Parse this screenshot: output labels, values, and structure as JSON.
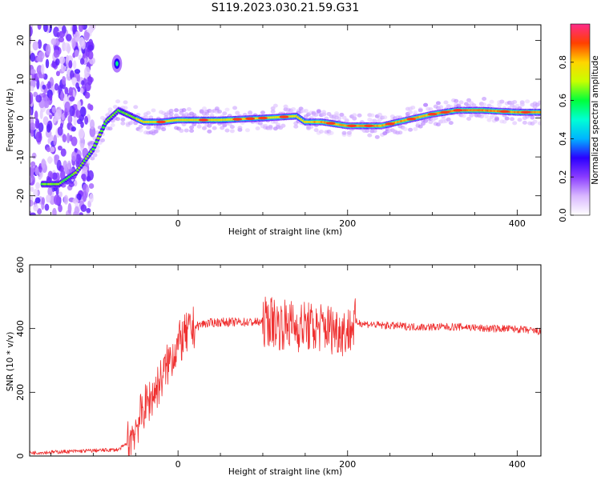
{
  "title": "S119.2023.030.21.59.G31",
  "colors": {
    "snr_line": "#ef3030",
    "colormap": [
      "#ffffff",
      "#d9b8ff",
      "#8a3cff",
      "#2b00ff",
      "#00b4ff",
      "#00ffd5",
      "#00ff3c",
      "#c8ff00",
      "#ffd500",
      "#ff4000",
      "#ff2a8a"
    ]
  },
  "chart_data": [
    {
      "type": "heatmap",
      "name": "spectrogram",
      "xlabel": "Height of straight line (km)",
      "ylabel": "Frequency (Hz)",
      "xlim": [
        -175,
        428
      ],
      "ylim": [
        -25,
        24
      ],
      "xticks": [
        0,
        200,
        400
      ],
      "yticks": [
        -20,
        -10,
        0,
        10,
        20
      ],
      "colorbar": {
        "label": "Normalized spectral amplitude",
        "range": [
          0,
          1
        ],
        "ticks": [
          "0.0",
          "0.2",
          "0.4",
          "0.6",
          "0.8"
        ]
      },
      "ridge": {
        "x": [
          -160,
          -140,
          -120,
          -100,
          -85,
          -70,
          -60,
          -50,
          -40,
          -20,
          0,
          50,
          100,
          140,
          150,
          170,
          200,
          240,
          260,
          280,
          300,
          330,
          360,
          400,
          428
        ],
        "y": [
          -17,
          -17,
          -14,
          -8,
          -1,
          2,
          1,
          0,
          -1,
          -1,
          -0.5,
          -0.5,
          0,
          0.5,
          -1,
          -1,
          -2,
          -2,
          -1,
          0,
          1,
          2,
          2,
          1.5,
          1.5
        ]
      },
      "secondary_peak": {
        "x": -72,
        "y": 14
      }
    },
    {
      "type": "line",
      "name": "snr",
      "xlabel": "Height of straight line (km)",
      "ylabel": "SNR (10 * v/v)",
      "xlim": [
        -175,
        428
      ],
      "ylim": [
        0,
        600
      ],
      "xticks": [
        0,
        200,
        400
      ],
      "yticks": [
        0,
        200,
        400,
        600
      ],
      "x": [
        -175,
        -150,
        -120,
        -90,
        -70,
        -60,
        -50,
        -40,
        -30,
        -20,
        -10,
        0,
        10,
        20,
        30,
        40,
        50,
        70,
        90,
        100,
        110,
        120,
        130,
        140,
        150,
        160,
        170,
        180,
        190,
        200,
        210,
        220,
        240,
        260,
        280,
        300,
        320,
        340,
        360,
        380,
        400,
        428
      ],
      "y": [
        10,
        12,
        15,
        18,
        20,
        40,
        90,
        150,
        190,
        240,
        300,
        350,
        380,
        405,
        415,
        418,
        420,
        420,
        420,
        420,
        425,
        410,
        415,
        405,
        410,
        400,
        405,
        400,
        395,
        390,
        420,
        415,
        410,
        408,
        405,
        405,
        405,
        405,
        400,
        400,
        398,
        390
      ]
    }
  ]
}
